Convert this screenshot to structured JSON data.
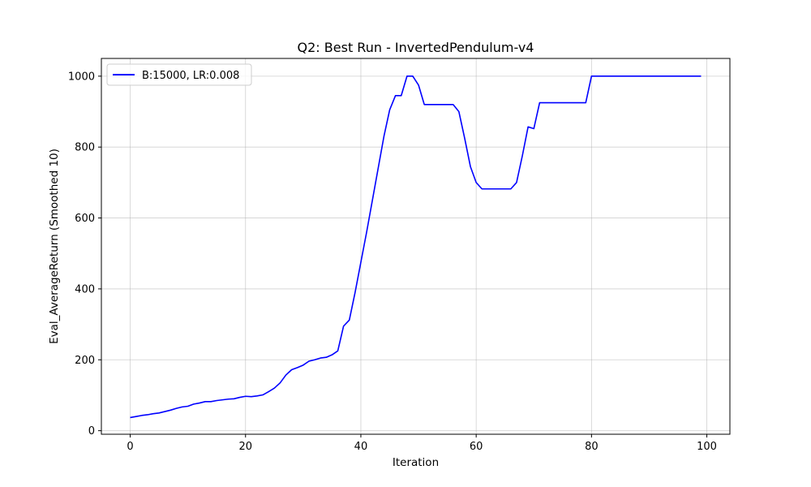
{
  "chart_data": {
    "type": "line",
    "title": "Q2: Best Run - InvertedPendulum-v4",
    "xlabel": "Iteration",
    "ylabel": "Eval_AverageReturn (Smoothed 10)",
    "xlim": [
      -5,
      104
    ],
    "ylim": [
      -10,
      1050
    ],
    "xticks": [
      0,
      20,
      40,
      60,
      80,
      100
    ],
    "yticks": [
      0,
      200,
      400,
      600,
      800,
      1000
    ],
    "grid": true,
    "legend_position": "top-left",
    "series": [
      {
        "name": "B:15000, LR:0.008",
        "color": "#0000ff",
        "x": [
          0,
          1,
          2,
          3,
          4,
          5,
          6,
          7,
          8,
          9,
          10,
          11,
          12,
          13,
          14,
          15,
          16,
          17,
          18,
          19,
          20,
          21,
          22,
          23,
          24,
          25,
          26,
          27,
          28,
          29,
          30,
          31,
          32,
          33,
          34,
          35,
          36,
          37,
          38,
          39,
          40,
          41,
          42,
          43,
          44,
          45,
          46,
          47,
          48,
          49,
          50,
          51,
          52,
          53,
          54,
          55,
          56,
          57,
          58,
          59,
          60,
          61,
          62,
          63,
          64,
          65,
          66,
          67,
          68,
          69,
          70,
          71,
          72,
          73,
          74,
          75,
          76,
          77,
          78,
          79,
          80,
          81,
          82,
          83,
          84,
          85,
          86,
          87,
          88,
          89,
          90,
          91,
          92,
          93,
          94,
          95,
          96,
          97,
          98,
          99
        ],
        "y": [
          37,
          40,
          43,
          45,
          48,
          50,
          54,
          58,
          63,
          67,
          69,
          75,
          78,
          82,
          82,
          85,
          87,
          89,
          90,
          94,
          97,
          96,
          98,
          101,
          110,
          120,
          135,
          157,
          172,
          178,
          185,
          196,
          200,
          205,
          207,
          214,
          225,
          295,
          312,
          390,
          475,
          560,
          650,
          740,
          830,
          905,
          945,
          945,
          1000,
          1000,
          975,
          920,
          920,
          920,
          920,
          920,
          920,
          900,
          825,
          745,
          700,
          682,
          682,
          682,
          682,
          682,
          682,
          700,
          775,
          857,
          852,
          925,
          925,
          925,
          925,
          925,
          925,
          925,
          925,
          925,
          1000,
          1000,
          1000,
          1000,
          1000,
          1000,
          1000,
          1000,
          1000,
          1000,
          1000,
          1000,
          1000,
          1000,
          1000,
          1000,
          1000,
          1000,
          1000,
          1000
        ]
      }
    ]
  }
}
